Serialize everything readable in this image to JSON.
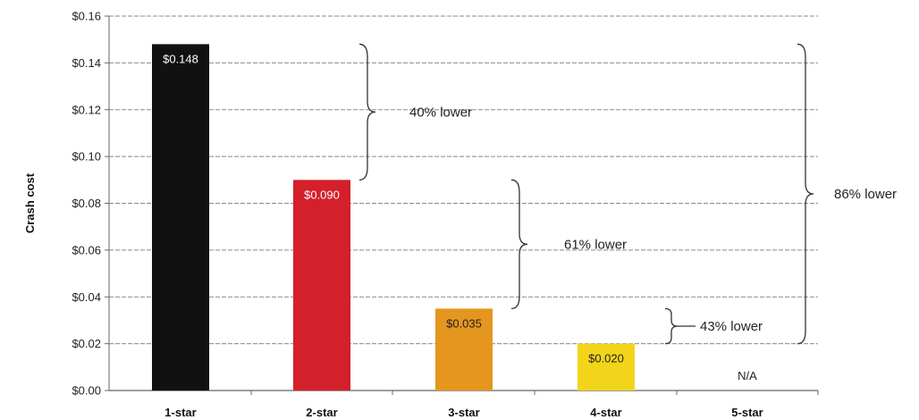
{
  "chart_data": {
    "type": "bar",
    "ylabel": "Crash cost",
    "ylim": [
      0,
      0.16
    ],
    "ytick_step": 0.02,
    "ytick_labels": [
      "$0.00",
      "$0.02",
      "$0.04",
      "$0.06",
      "$0.08",
      "$0.10",
      "$0.12",
      "$0.14",
      "$0.16"
    ],
    "grid": true,
    "categories": [
      "1-star",
      "2-star",
      "3-star",
      "4-star",
      "5-star"
    ],
    "values": [
      0.148,
      0.09,
      0.035,
      0.02,
      null
    ],
    "value_labels": [
      "$0.148",
      "$0.090",
      "$0.035",
      "$0.020",
      "N/A"
    ],
    "bar_colors": [
      "#111111",
      "#d4202a",
      "#e5961e",
      "#f2d51a",
      null
    ],
    "label_colors": [
      "#ffffff",
      "#ffffff",
      "#222222",
      "#222222",
      "#222222"
    ],
    "annotations": [
      {
        "text": "40% lower",
        "from": 0.148,
        "to": 0.09,
        "near": "1-star"
      },
      {
        "text": "61% lower",
        "from": 0.09,
        "to": 0.035,
        "near": "2-star"
      },
      {
        "text": "43% lower",
        "from": 0.035,
        "to": 0.02,
        "near": "3-star"
      },
      {
        "text": "86% lower",
        "from": 0.148,
        "to": 0.02,
        "near": "5-star"
      }
    ]
  }
}
